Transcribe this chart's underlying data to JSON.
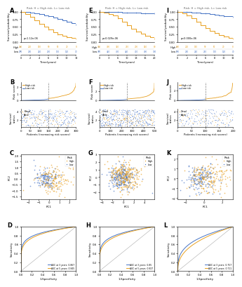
{
  "colors": {
    "high": "#E8A020",
    "low": "#4472C4",
    "diagonal": "#AAAAAA"
  },
  "km_A": {
    "title": "Risk: H = High risk, L= Low risk",
    "pval": "p=1.12e-06",
    "time_max": 12,
    "high_surv": [
      1.0,
      0.92,
      0.83,
      0.72,
      0.6,
      0.5,
      0.4,
      0.32,
      0.25,
      0.2,
      0.16,
      0.13,
      0.1
    ],
    "low_surv": [
      1.0,
      0.98,
      0.96,
      0.94,
      0.91,
      0.88,
      0.85,
      0.81,
      0.77,
      0.72,
      0.67,
      0.63,
      0.58
    ]
  },
  "km_E": {
    "title": "Risk: H = High risk, L= Low risk",
    "pval": "p=0.029e-06",
    "time_max": 20,
    "high_surv": [
      1.0,
      0.97,
      0.93,
      0.87,
      0.78,
      0.67,
      0.55,
      0.44,
      0.35,
      0.27,
      0.21,
      0.16,
      0.12
    ],
    "low_surv": [
      1.0,
      0.995,
      0.99,
      0.985,
      0.98,
      0.975,
      0.97,
      0.965,
      0.96,
      0.955,
      0.95,
      0.945,
      0.94
    ]
  },
  "km_I": {
    "title": "Risk: H = High risk, L= Low risk",
    "pval": "p=0.000e-06",
    "time_max": 12,
    "high_surv": [
      1.0,
      0.94,
      0.87,
      0.78,
      0.67,
      0.56,
      0.46,
      0.37,
      0.29,
      0.23,
      0.18,
      0.14,
      0.11
    ],
    "low_surv": [
      1.0,
      0.99,
      0.98,
      0.97,
      0.96,
      0.95,
      0.94,
      0.92,
      0.9,
      0.88,
      0.86,
      0.84,
      0.82
    ]
  },
  "roc_D": {
    "auc3": 0.867,
    "auc5": 0.845
  },
  "roc_H": {
    "auc3": 0.85,
    "auc5": 0.827
  },
  "roc_L": {
    "auc3": 0.757,
    "auc5": 0.711
  },
  "bg_color": "#FFFFFF"
}
